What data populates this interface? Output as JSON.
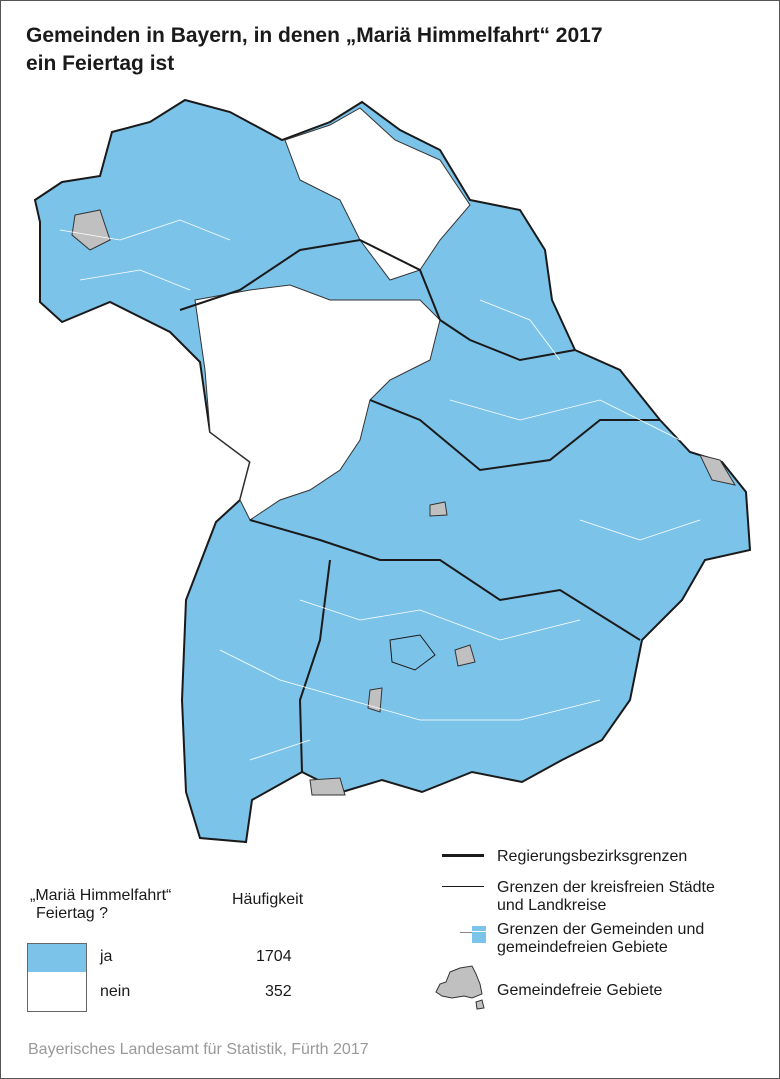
{
  "title": {
    "line1": "Gemeinden in Bayern, in denen „Mariä Himmelfahrt“ 2017",
    "line2": "ein Feiertag ist"
  },
  "colors": {
    "ja": "#7cc3ea",
    "nein": "#ffffff",
    "gemeindefrei": "#c0c0c0",
    "district_border": "#1a1a1a"
  },
  "legend_values": {
    "header_question_line1": "„Mariä Himmelfahrt“",
    "header_question_line2": "Feiertag ?",
    "header_count": "Häufigkeit",
    "rows": [
      {
        "label": "ja",
        "count": "1704"
      },
      {
        "label": "nein",
        "count": "352"
      }
    ]
  },
  "legend_borders": {
    "regierungsbezirk": "Regierungsbezirksgrenzen",
    "kreis_line1": "Grenzen der kreisfreien Städte",
    "kreis_line2": "und Landkreise",
    "gemeinde_line1": "Grenzen der Gemeinden und",
    "gemeinde_line2": "gemeindefreien Gebiete",
    "gemeindefrei": "Gemeindefreie Gebiete"
  },
  "source": "Bayerisches Landesamt für Statistik, Fürth 2017"
}
